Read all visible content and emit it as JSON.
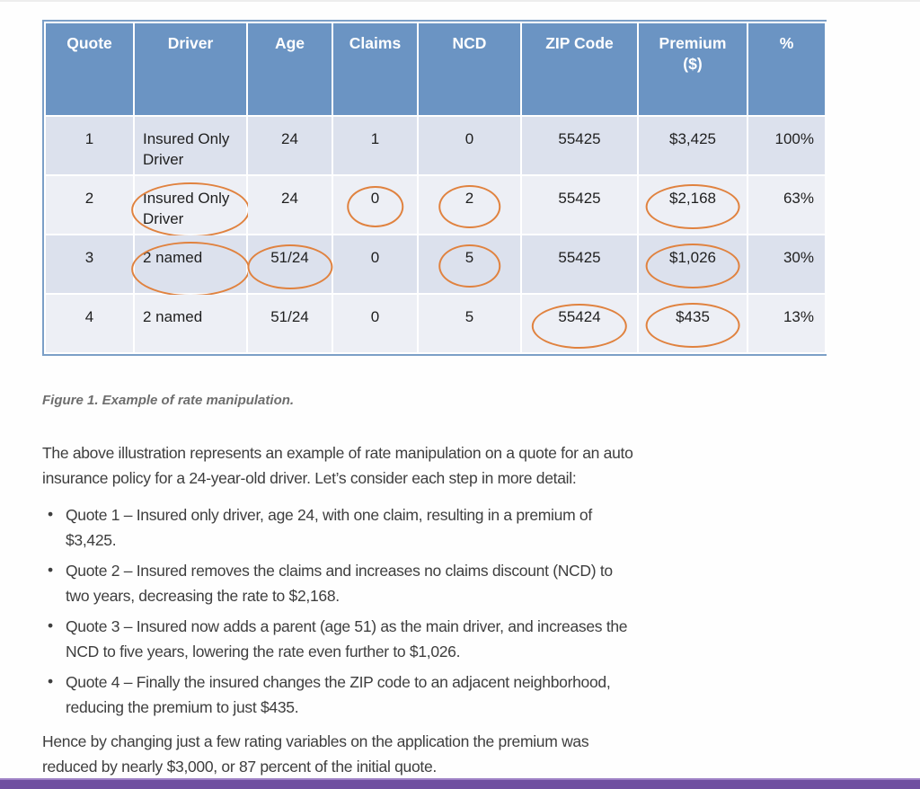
{
  "figure": {
    "caption": "Figure 1. Example of rate manipulation."
  },
  "table": {
    "columns": [
      "Quote",
      "Driver",
      "Age",
      "Claims",
      "NCD",
      "ZIP Code",
      "Premium\n($)",
      "%"
    ],
    "rows": [
      {
        "cells": [
          "1",
          "Insured Only Driver",
          "24",
          "1",
          "0",
          "55425",
          "$3,425",
          "100%"
        ],
        "circled": []
      },
      {
        "cells": [
          "2",
          "Insured Only Driver",
          "24",
          "0",
          "2",
          "55425",
          "$2,168",
          "63%"
        ],
        "circled": [
          1,
          3,
          4,
          6
        ]
      },
      {
        "cells": [
          "3",
          "2 named",
          "51/24",
          "0",
          "5",
          "55425",
          "$1,026",
          "30%"
        ],
        "circled": [
          1,
          2,
          4,
          6
        ]
      },
      {
        "cells": [
          "4",
          "2 named",
          "51/24",
          "0",
          "5",
          "55424",
          "$435",
          "13%"
        ],
        "circled": [
          5,
          6
        ]
      }
    ]
  },
  "body": {
    "intro": "The above illustration represents an example of rate manipulation on a quote for an auto insurance policy for a 24-year-old driver. Let’s consider each step in more detail:",
    "bullet_glyph": "•",
    "bullets": [
      "Quote 1 – Insured only driver, age 24, with one claim, resulting in a premium of $3,425.",
      "Quote 2 – Insured removes the claims and increases no claims discount (NCD) to two years, decreasing the rate to $2,168.",
      "Quote 3 – Insured now adds a parent (age 51) as the main driver, and increases the NCD to five years, lowering the rate even further to $1,026.",
      "Quote 4 – Finally the insured changes the ZIP code to an adjacent neighborhood, reducing the premium to just $435."
    ],
    "conclusion": "Hence by changing just a few rating variables on the application the premium was reduced by nearly $3,000, or 87 percent of the initial quote."
  },
  "colors": {
    "header_bg": "#6b94c3",
    "row_odd": "#dce1ed",
    "row_even": "#edeff5",
    "table_border": "#7b9fc7",
    "grid_line": "#ffffff",
    "circle": "#e0823f",
    "body_text": "#3e3e3e",
    "caption_text": "#6e6e6e",
    "footer_purple": "#6f4fa0",
    "footer_purple_light": "#9f82c6"
  }
}
